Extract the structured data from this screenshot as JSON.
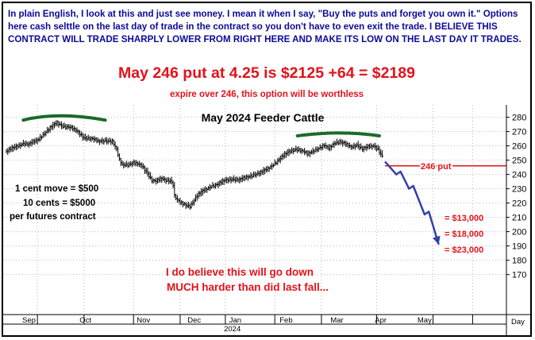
{
  "header": {
    "blurb": "In plain English, I look at this and just see money. I mean it when I say, \"Buy the puts and forget you own it.\" Options here cash selttle on the last day of trade in the contract so you don't have to even exit the trade. I BELIEVE THIS CONTRACT WILL TRADE SHARPLY LOWER FROM RIGHT HERE AND MAKE ITS LOW ON THE LAST DAY IT TRADES.",
    "headline": "May 246 put at 4.25 is $2125 +64 = $2189",
    "subline": "expire over 246, this option will be worthless"
  },
  "colors": {
    "blue_text": "#0a0a9a",
    "red_text": "#e3121b",
    "arc_green": "#1a6b2a",
    "projection_blue": "#3340a8",
    "price_bars": "#000000"
  },
  "chart_data": {
    "type": "bar",
    "title": "May 2024 Feeder Cattle",
    "y_axis": {
      "min": 160,
      "max": 285,
      "ticks": [
        170,
        180,
        190,
        200,
        210,
        220,
        230,
        240,
        250,
        260,
        270,
        280
      ]
    },
    "x_axis": {
      "months": [
        "Sep",
        "Oct",
        "Nov",
        "Dec",
        "Jan",
        "Feb",
        "Mar",
        "Apr",
        "May"
      ],
      "year_label": "2024",
      "unit_label": "Day"
    },
    "price_path": [
      [
        0,
        256
      ],
      [
        6,
        259
      ],
      [
        12,
        262
      ],
      [
        16,
        261
      ],
      [
        22,
        264
      ],
      [
        28,
        270
      ],
      [
        33,
        274
      ],
      [
        36,
        276
      ],
      [
        40,
        274
      ],
      [
        45,
        273
      ],
      [
        50,
        270
      ],
      [
        55,
        266
      ],
      [
        60,
        265
      ],
      [
        65,
        263
      ],
      [
        70,
        264
      ],
      [
        75,
        263
      ],
      [
        78,
        257
      ],
      [
        80,
        250
      ],
      [
        82,
        247
      ],
      [
        86,
        247
      ],
      [
        90,
        248
      ],
      [
        96,
        246
      ],
      [
        100,
        241
      ],
      [
        103,
        236
      ],
      [
        106,
        235
      ],
      [
        110,
        237
      ],
      [
        113,
        236
      ],
      [
        116,
        236
      ],
      [
        118,
        233
      ],
      [
        119,
        225
      ],
      [
        121,
        222
      ],
      [
        123,
        220
      ],
      [
        126,
        219
      ],
      [
        130,
        218
      ],
      [
        135,
        225
      ],
      [
        140,
        229
      ],
      [
        145,
        232
      ],
      [
        150,
        233
      ],
      [
        155,
        236
      ],
      [
        160,
        237
      ],
      [
        165,
        236
      ],
      [
        170,
        238
      ],
      [
        175,
        240
      ],
      [
        180,
        241
      ],
      [
        185,
        244
      ],
      [
        190,
        248
      ],
      [
        195,
        252
      ],
      [
        200,
        256
      ],
      [
        205,
        258
      ],
      [
        210,
        256
      ],
      [
        213,
        254
      ],
      [
        216,
        256
      ],
      [
        220,
        258
      ],
      [
        225,
        260
      ],
      [
        228,
        258
      ],
      [
        232,
        262
      ],
      [
        236,
        263
      ],
      [
        240,
        261
      ],
      [
        244,
        259
      ],
      [
        248,
        261
      ],
      [
        252,
        258
      ],
      [
        256,
        259
      ],
      [
        260,
        260
      ],
      [
        263,
        258
      ],
      [
        266,
        253
      ]
    ],
    "top_arcs": [
      {
        "start_index": 12,
        "peak_index": 36,
        "end_index": 70,
        "y_at_ends": 278,
        "y_at_peak": 281
      },
      {
        "start_index": 206,
        "peak_index": 236,
        "end_index": 264,
        "y_at_ends": 267,
        "y_at_peak": 269
      }
    ],
    "projection_path": [
      [
        268,
        249
      ],
      [
        276,
        240
      ],
      [
        279,
        242
      ],
      [
        285,
        230
      ],
      [
        288,
        232
      ],
      [
        296,
        212
      ],
      [
        299,
        214
      ],
      [
        306,
        191
      ]
    ],
    "strike_line": {
      "value": 246,
      "label": "246 put",
      "from_index": 268
    },
    "annotations": {
      "left_note": [
        "1 cent move = $500",
        "10 cents = $5000",
        "per futures contract"
      ],
      "targets": [
        "= $13,000",
        "= $18,000",
        "= $23,000"
      ],
      "bottom_note": [
        "I do believe this will go down",
        "MUCH harder than did last fall..."
      ]
    }
  }
}
